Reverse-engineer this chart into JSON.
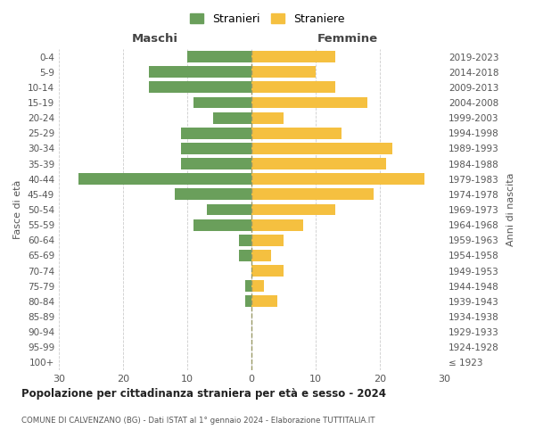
{
  "age_groups": [
    "0-4",
    "5-9",
    "10-14",
    "15-19",
    "20-24",
    "25-29",
    "30-34",
    "35-39",
    "40-44",
    "45-49",
    "50-54",
    "55-59",
    "60-64",
    "65-69",
    "70-74",
    "75-79",
    "80-84",
    "85-89",
    "90-94",
    "95-99",
    "100+"
  ],
  "birth_years": [
    "2019-2023",
    "2014-2018",
    "2009-2013",
    "2004-2008",
    "1999-2003",
    "1994-1998",
    "1989-1993",
    "1984-1988",
    "1979-1983",
    "1974-1978",
    "1969-1973",
    "1964-1968",
    "1959-1963",
    "1954-1958",
    "1949-1953",
    "1944-1948",
    "1939-1943",
    "1934-1938",
    "1929-1933",
    "1924-1928",
    "≤ 1923"
  ],
  "males": [
    10,
    16,
    16,
    9,
    6,
    11,
    11,
    11,
    27,
    12,
    7,
    9,
    2,
    2,
    0,
    1,
    1,
    0,
    0,
    0,
    0
  ],
  "females": [
    13,
    10,
    13,
    18,
    5,
    14,
    22,
    21,
    27,
    19,
    13,
    8,
    5,
    3,
    5,
    2,
    4,
    0,
    0,
    0,
    0
  ],
  "male_color": "#6a9f5b",
  "female_color": "#f5c040",
  "background_color": "#ffffff",
  "grid_color": "#cccccc",
  "title": "Popolazione per cittadinanza straniera per età e sesso - 2024",
  "subtitle": "COMUNE DI CALVENZANO (BG) - Dati ISTAT al 1° gennaio 2024 - Elaborazione TUTTITALIA.IT",
  "xlabel_left": "Maschi",
  "xlabel_right": "Femmine",
  "ylabel_left": "Fasce di età",
  "ylabel_right": "Anni di nascita",
  "legend_male": "Stranieri",
  "legend_female": "Straniere",
  "xlim": 30
}
